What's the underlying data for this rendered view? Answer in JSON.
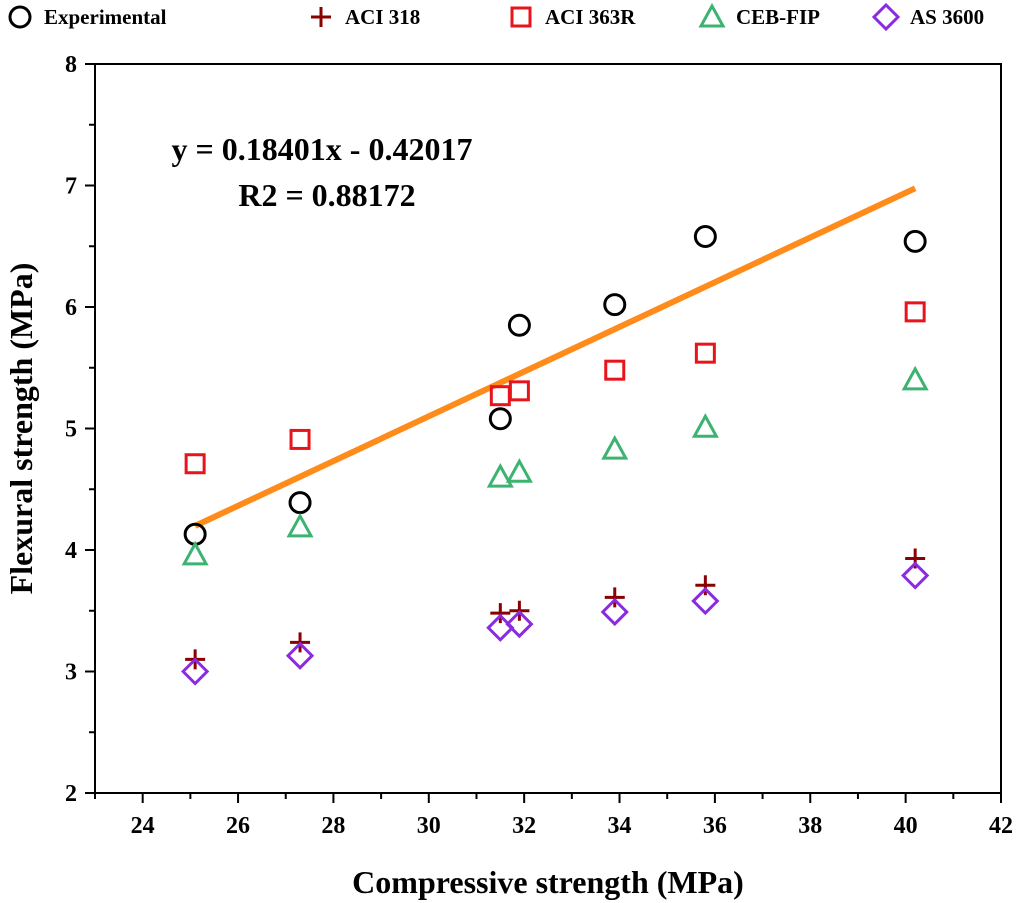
{
  "chart_data": {
    "type": "scatter",
    "xlabel": "Compressive strength (MPa)",
    "ylabel": "Flexural strength (MPa)",
    "xlim": [
      23,
      42
    ],
    "ylim": [
      2,
      8
    ],
    "xticks": [
      24,
      26,
      28,
      30,
      32,
      34,
      36,
      38,
      40,
      42
    ],
    "yticks": [
      2,
      3,
      4,
      5,
      6,
      7,
      8
    ],
    "grid": false,
    "legend_position": "top",
    "series": [
      {
        "name": "Experimental",
        "marker": "circle",
        "color": "#000000",
        "x": [
          25.1,
          27.3,
          31.5,
          31.9,
          33.9,
          35.8,
          40.2
        ],
        "y": [
          4.13,
          4.39,
          5.08,
          5.85,
          6.02,
          6.58,
          6.54
        ]
      },
      {
        "name": "ACI 318",
        "marker": "plus",
        "color": "#8b0000",
        "x": [
          25.1,
          27.3,
          31.5,
          31.9,
          33.9,
          35.8,
          40.2
        ],
        "y": [
          3.1,
          3.24,
          3.48,
          3.5,
          3.61,
          3.71,
          3.93
        ]
      },
      {
        "name": "ACI 363R",
        "marker": "square",
        "color": "#e8141c",
        "x": [
          25.1,
          27.3,
          31.5,
          31.9,
          33.9,
          35.8,
          40.2
        ],
        "y": [
          4.71,
          4.91,
          5.27,
          5.31,
          5.48,
          5.62,
          5.96
        ]
      },
      {
        "name": "CEB-FIP",
        "marker": "triangle",
        "color": "#3cb371",
        "x": [
          25.1,
          27.3,
          31.5,
          31.9,
          33.9,
          35.8,
          40.2
        ],
        "y": [
          3.96,
          4.19,
          4.6,
          4.64,
          4.83,
          5.01,
          5.4
        ]
      },
      {
        "name": "AS 3600",
        "marker": "diamond",
        "color": "#8a2be2",
        "x": [
          25.1,
          27.3,
          31.5,
          31.9,
          33.9,
          35.8,
          40.2
        ],
        "y": [
          3.0,
          3.13,
          3.36,
          3.39,
          3.49,
          3.58,
          3.79
        ]
      }
    ],
    "fit_line": {
      "color": "#ff8c1a",
      "x": [
        25.1,
        40.2
      ],
      "slope": 0.18401,
      "intercept": -0.42017
    },
    "annotations": [
      {
        "text": "y = 0.18401x - 0.42017"
      },
      {
        "text": "R2 = 0.88172"
      }
    ]
  }
}
